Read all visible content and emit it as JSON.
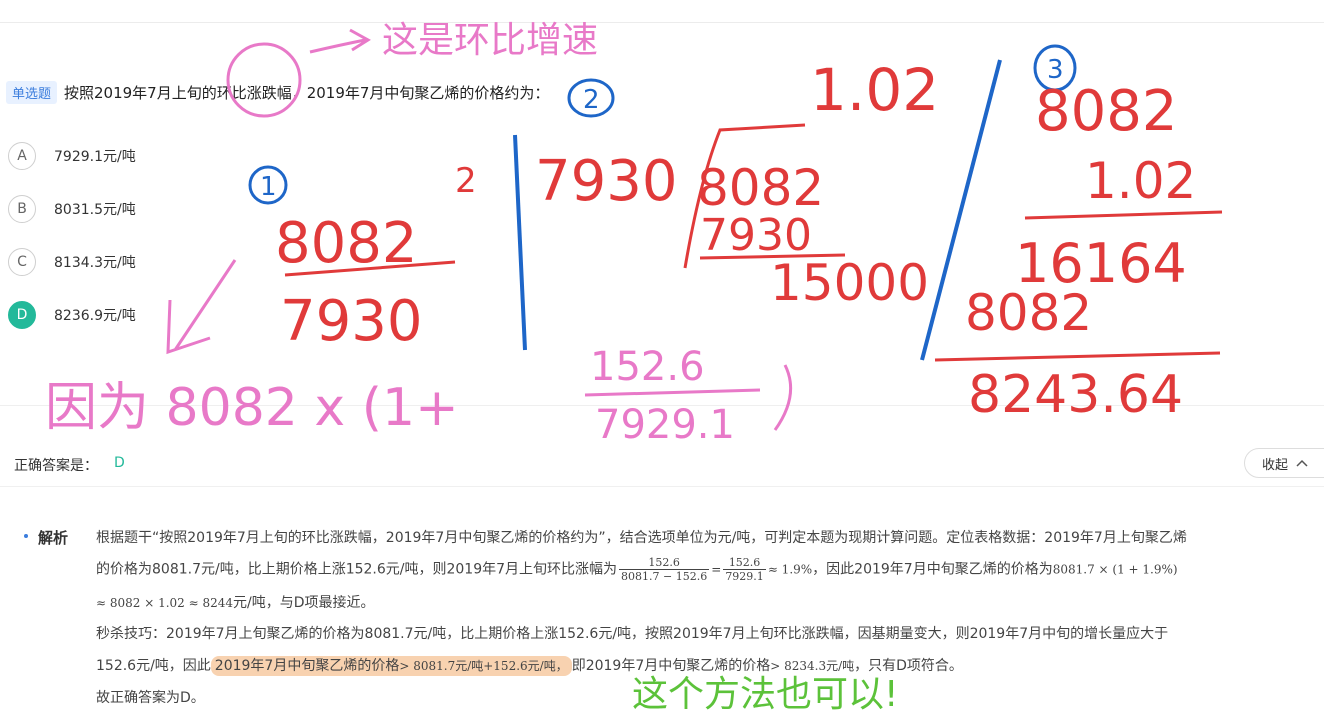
{
  "question": {
    "type_tag": "单选题",
    "text": "按照2019年7月上旬的环比涨跌幅，2019年7月中旬聚乙烯的价格约为：",
    "options": [
      {
        "letter": "A",
        "text": "7929.1元/吨",
        "selected": false
      },
      {
        "letter": "B",
        "text": "8031.5元/吨",
        "selected": false
      },
      {
        "letter": "C",
        "text": "8134.3元/吨",
        "selected": false
      },
      {
        "letter": "D",
        "text": "8236.9元/吨",
        "selected": true
      }
    ]
  },
  "answer": {
    "label": "正确答案是：",
    "value": "D",
    "collapse_label": "收起"
  },
  "analysis": {
    "title": "解析",
    "p1_a": "根据题干“按照2019年7月上旬的环比涨跌幅，2019年7月中旬聚乙烯的价格约为”，结合选项单位为元/吨，可判定本题为现期计算问题。定位表格数据：2019年7月上旬聚乙烯",
    "p1_b": "的价格为8081.7元/吨，比上期价格上涨152.6元/吨，则2019年7月上旬环比涨幅为",
    "f1_num": "152.6",
    "f1_den": "8081.7 − 152.6",
    "f2_num": "152.6",
    "f2_den": "7929.1",
    "p1_c": "≈ 1.9%",
    "p1_d": "，因此2019年7月中旬聚乙烯的价格为",
    "p1_e": "8081.7 × (1 + 1.9%)",
    "p1_f": "≈ 8082 × 1.02 ≈ 8244",
    "p1_g": "元/吨，与D项最接近。",
    "p2_a": "秒杀技巧：2019年7月上旬聚乙烯的价格为8081.7元/吨，比上期价格上涨152.6元/吨，按照2019年7月上旬环比涨跌幅，因基期量变大，则2019年7月中旬的增长量应大于",
    "p2_b": "152.6元/吨，因此",
    "p2_hl1": "2019年7月中旬聚乙烯的价格",
    "p2_hl2": "> 8081.7元/吨+152.6元/吨，",
    "p2_c": "即2019年7月中旬聚乙烯的价格",
    "p2_d": "> 8234.3元/吨",
    "p2_e": "，只有D项符合。",
    "p3": "故正确答案为D。"
  },
  "annotations": {
    "note_top": "这是环比增速",
    "circle_1": "1",
    "circle_2": "2",
    "circle_3": "3",
    "m1_num": "8082",
    "m1_sup": "2",
    "m1_den": "7930",
    "m2_a": "7930",
    "m2_top": "1.02",
    "m2_b": "8082",
    "m2_c": "7930",
    "m2_d": "15000",
    "m3_a": "8082",
    "m3_b": "1.02",
    "m3_c": "16164",
    "m3_d": "8082",
    "m3_e": "8243.64",
    "bottom_text": "因为 8082 x (1+",
    "bottom_num": "152.6",
    "bottom_den": "7929.1",
    "green_note": "这个方法也可以!",
    "colors": {
      "pink": "#e879c8",
      "red": "#e03a3a",
      "blue": "#1e66c8",
      "green": "#5cc23a",
      "accent": "#23b99a"
    }
  }
}
